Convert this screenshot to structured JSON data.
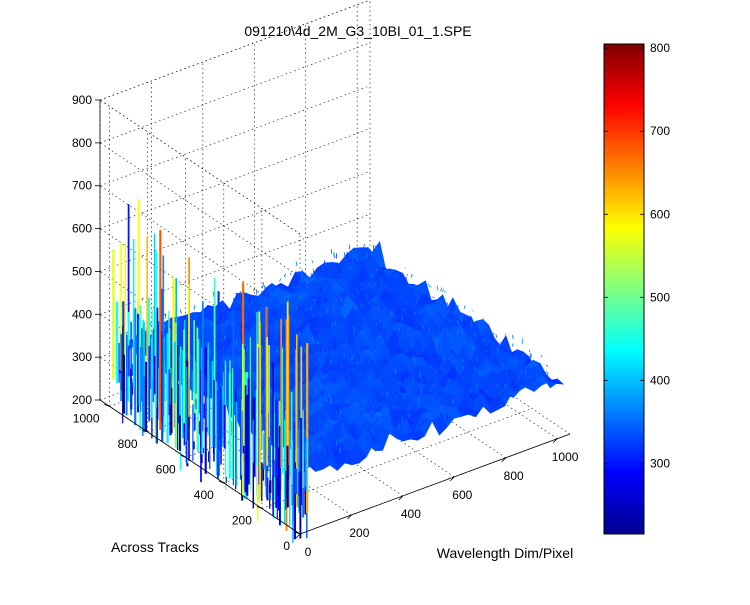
{
  "chart_data": {
    "type": "surface3d",
    "title": "091210\\4d_2M_G3_10BI_01_1.SPE",
    "xlabel": "Wavelength Dim/Pixel",
    "ylabel": "Across Tracks",
    "zlabel": "",
    "x_ticks": [
      0,
      200,
      400,
      600,
      800,
      1000
    ],
    "y_ticks": [
      0,
      200,
      400,
      600,
      800,
      1000
    ],
    "z_ticks": [
      200,
      300,
      400,
      500,
      600,
      700,
      800,
      900
    ],
    "xlim": [
      0,
      1050
    ],
    "ylim": [
      0,
      1050
    ],
    "zlim": [
      200,
      900
    ],
    "colorbar": {
      "ticks": [
        300,
        400,
        500,
        600,
        700,
        800
      ],
      "range": [
        215,
        805
      ],
      "colormap": "jet"
    },
    "surface": {
      "baseline": 330,
      "noise": 20,
      "edge_spikes_range": [
        180,
        700
      ],
      "edge_spike_side": "x=0"
    },
    "grid": true
  }
}
